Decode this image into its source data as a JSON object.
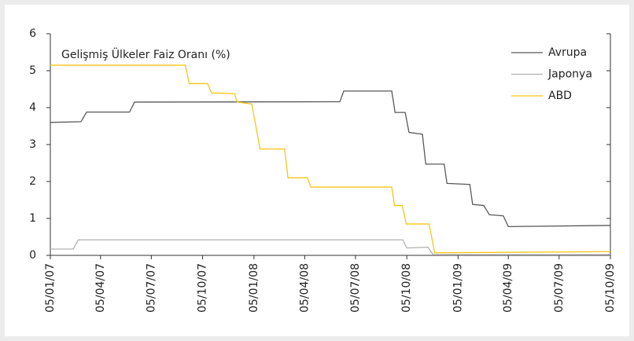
{
  "chart_data": {
    "type": "line",
    "title": "Gelişmiş Ülkeler Faiz Oranı (%)",
    "xlim": [
      "2007-01-05",
      "2009-10-05"
    ],
    "xticks": [
      {
        "value": "2007-01-05",
        "label": "05/01/07"
      },
      {
        "value": "2007-04-05",
        "label": "05/04/07"
      },
      {
        "value": "2007-07-05",
        "label": "05/07/07"
      },
      {
        "value": "2007-10-05",
        "label": "05/10/07"
      },
      {
        "value": "2008-01-05",
        "label": "05/01/08"
      },
      {
        "value": "2008-04-05",
        "label": "05/04/08"
      },
      {
        "value": "2008-07-05",
        "label": "05/07/08"
      },
      {
        "value": "2008-10-05",
        "label": "05/10/08"
      },
      {
        "value": "2009-01-05",
        "label": "05/01/09"
      },
      {
        "value": "2009-04-05",
        "label": "05/04/09"
      },
      {
        "value": "2009-07-05",
        "label": "05/07/09"
      },
      {
        "value": "2009-10-05",
        "label": "05/10/09"
      }
    ],
    "ylim": [
      0,
      6
    ],
    "yticks": [
      0,
      1,
      2,
      3,
      4,
      5,
      6
    ],
    "grid": false,
    "legend": "top-right",
    "series": [
      {
        "name": "Avrupa",
        "color": "#595959",
        "x": [
          "2007-01-05",
          "2007-03-01",
          "2007-03-11",
          "2007-05-27",
          "2007-06-05",
          "2008-06-07",
          "2008-06-14",
          "2008-09-08",
          "2008-09-14",
          "2008-10-02",
          "2008-10-09",
          "2008-11-02",
          "2008-11-08",
          "2008-12-11",
          "2008-12-16",
          "2009-01-26",
          "2009-01-31",
          "2009-02-20",
          "2009-03-02",
          "2009-03-27",
          "2009-04-05",
          "2009-10-05"
        ],
        "values": [
          3.6,
          3.62,
          3.88,
          3.88,
          4.15,
          4.16,
          4.45,
          4.45,
          3.87,
          3.87,
          3.33,
          3.28,
          2.47,
          2.47,
          1.95,
          1.92,
          1.38,
          1.35,
          1.1,
          1.07,
          0.78,
          0.81
        ]
      },
      {
        "name": "Japonya",
        "color": "#b0b0b0",
        "x": [
          "2007-01-05",
          "2007-02-15",
          "2007-02-24",
          "2008-09-28",
          "2008-10-05",
          "2008-11-12",
          "2008-11-21",
          "2009-10-05"
        ],
        "values": [
          0.17,
          0.17,
          0.42,
          0.42,
          0.2,
          0.22,
          0.02,
          0.02
        ]
      },
      {
        "name": "ABD",
        "color": "#f5c518",
        "x": [
          "2007-01-05",
          "2007-09-04",
          "2007-09-11",
          "2007-10-14",
          "2007-10-21",
          "2007-12-01",
          "2007-12-06",
          "2008-01-01",
          "2008-01-16",
          "2008-02-29",
          "2008-03-06",
          "2008-04-10",
          "2008-04-16",
          "2008-09-08",
          "2008-09-13",
          "2008-09-27",
          "2008-10-04",
          "2008-11-14",
          "2008-11-24",
          "2009-10-05"
        ],
        "values": [
          5.15,
          5.15,
          4.65,
          4.65,
          4.4,
          4.38,
          4.15,
          4.1,
          2.88,
          2.88,
          2.1,
          2.1,
          1.85,
          1.85,
          1.35,
          1.35,
          0.85,
          0.85,
          0.07,
          0.1
        ]
      }
    ]
  }
}
